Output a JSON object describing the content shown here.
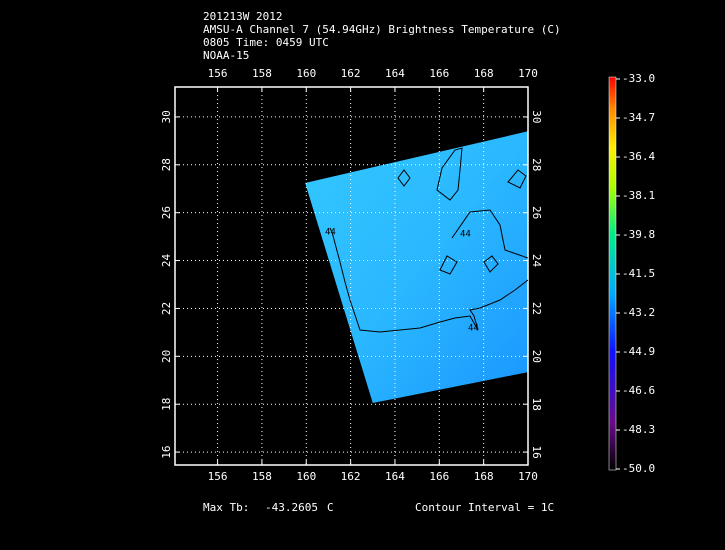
{
  "header": {
    "lines": [
      "201213W 2012",
      "AMSU-A Channel 7 (54.94GHz) Brightness Temperature (C)",
      "0805 Time: 0459 UTC",
      "NOAA-15"
    ]
  },
  "map": {
    "xlim": [
      154.08,
      170
    ],
    "ylim": [
      15.46,
      31.25
    ],
    "xticks": [
      156,
      158,
      160,
      162,
      164,
      166,
      168,
      170
    ],
    "yticks": [
      16,
      18,
      20,
      22,
      24,
      26,
      28,
      30
    ],
    "swath": {
      "lon": [
        159.95,
        170,
        170,
        163.0
      ],
      "lat": [
        27.24,
        29.4,
        19.34,
        18.05
      ]
    },
    "contour_labels": [
      "44",
      "44",
      "44"
    ]
  },
  "colorbar": {
    "lim": [
      -50,
      -33
    ],
    "labels": [
      {
        "value": -33,
        "label": "-33.0"
      },
      {
        "value": -34.7,
        "label": "-34.7"
      },
      {
        "value": -36.4,
        "label": "-36.4"
      },
      {
        "value": -38.1,
        "label": "-38.1"
      },
      {
        "value": -39.8,
        "label": "-39.8"
      },
      {
        "value": -41.5,
        "label": "-41.5"
      },
      {
        "value": -43.2,
        "label": "-43.2"
      },
      {
        "value": -44.9,
        "label": "-44.9"
      },
      {
        "value": -46.6,
        "label": "-46.6"
      },
      {
        "value": -48.3,
        "label": "-48.3"
      },
      {
        "value": -50,
        "label": "-50.0"
      }
    ]
  },
  "footer": {
    "max_label": "Max Tb:",
    "max_value": "-43.2605",
    "max_unit": "C",
    "contour_interval": "Contour Interval = 1C"
  }
}
